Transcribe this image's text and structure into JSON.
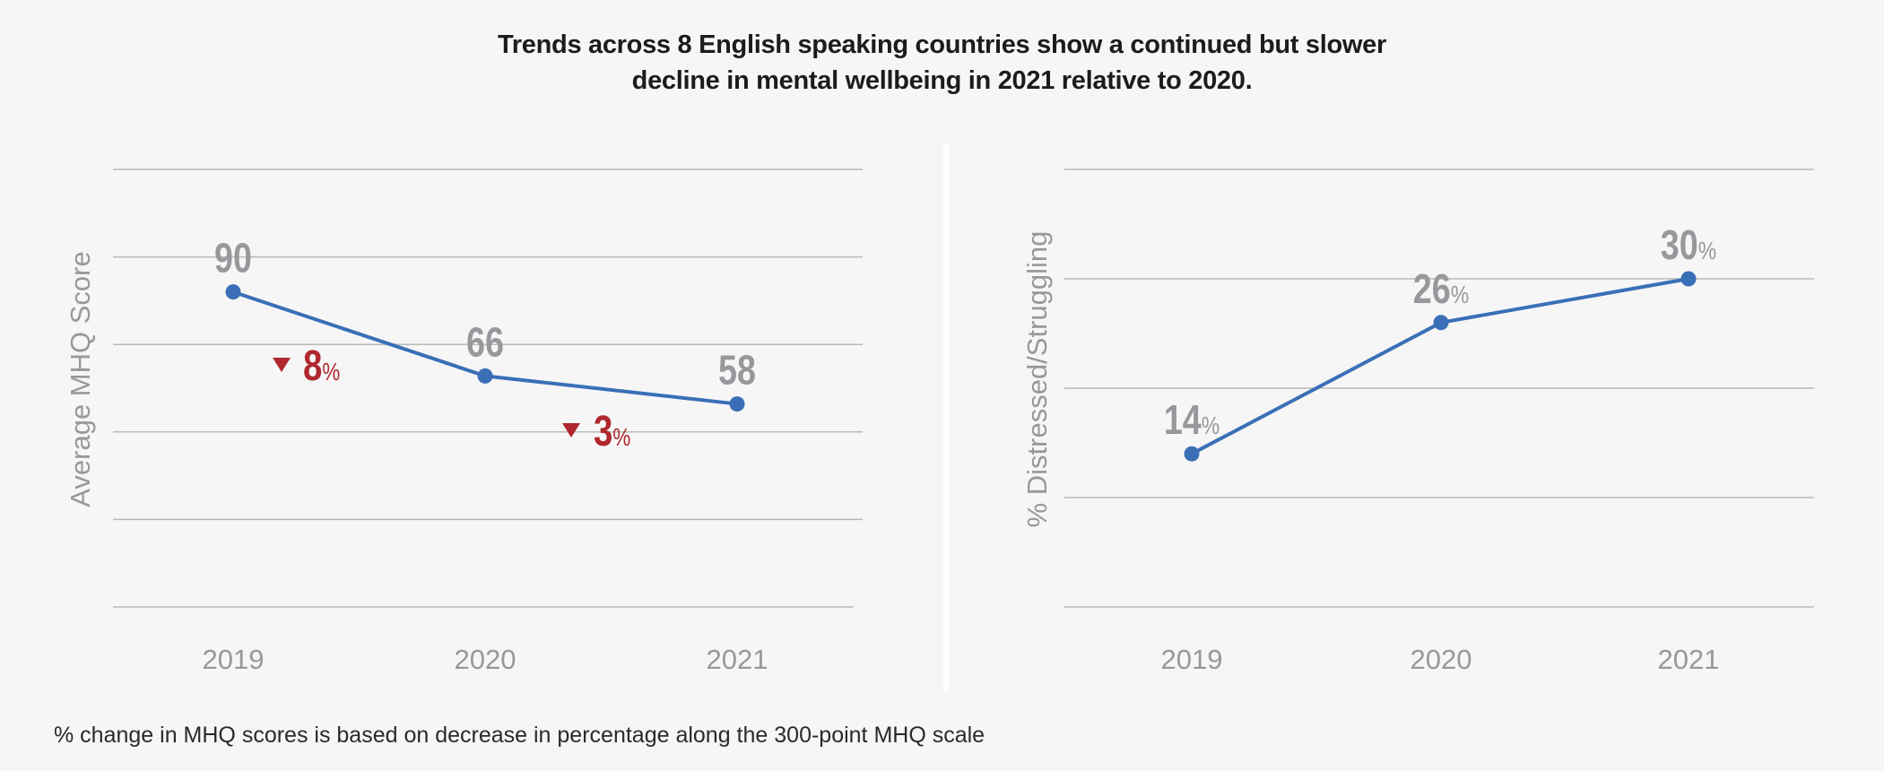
{
  "title_lines": [
    "Trends across 8 English speaking countries show a continued but slower",
    "decline in mental wellbeing in 2021 relative to 2020."
  ],
  "footnote": "% change in MHQ scores is based on decrease in percentage along the 300-point MHQ scale",
  "colors": {
    "background": "#f6f6f6",
    "line": "#3a6fb7",
    "value_label": "#97989c",
    "decrease": "#b0282e",
    "grid": "#b9b9b9",
    "title": "#1c1c1c"
  },
  "chart_data": [
    {
      "type": "line",
      "title": "",
      "xlabel": "",
      "ylabel": "Average MHQ Score",
      "categories": [
        "2019",
        "2020",
        "2021"
      ],
      "series": [
        {
          "name": "Average MHQ Score",
          "values": [
            90,
            66,
            58
          ]
        }
      ],
      "value_labels": [
        "90",
        "66",
        "58"
      ],
      "value_suffix": "",
      "ylim": [
        0,
        125
      ],
      "gridlines": [
        0,
        25,
        50,
        75,
        100,
        125
      ],
      "grid": true,
      "y_tick_labels_shown": false,
      "annotations": [
        {
          "between": [
            "2019",
            "2020"
          ],
          "direction": "decrease",
          "icon": "down-triangle-icon",
          "value": "8",
          "suffix": "%"
        },
        {
          "between": [
            "2020",
            "2021"
          ],
          "direction": "decrease",
          "icon": "down-triangle-icon",
          "value": "3",
          "suffix": "%"
        }
      ]
    },
    {
      "type": "line",
      "title": "",
      "xlabel": "",
      "ylabel": "% Distressed/Struggling",
      "categories": [
        "2019",
        "2020",
        "2021"
      ],
      "series": [
        {
          "name": "% Distressed/Struggling",
          "values": [
            14,
            26,
            30
          ]
        }
      ],
      "value_labels": [
        "14",
        "26",
        "30"
      ],
      "value_suffix": "%",
      "ylim": [
        0,
        40
      ],
      "gridlines": [
        0,
        10,
        20,
        30,
        40
      ],
      "grid": true,
      "y_tick_labels_shown": false,
      "annotations": []
    }
  ]
}
